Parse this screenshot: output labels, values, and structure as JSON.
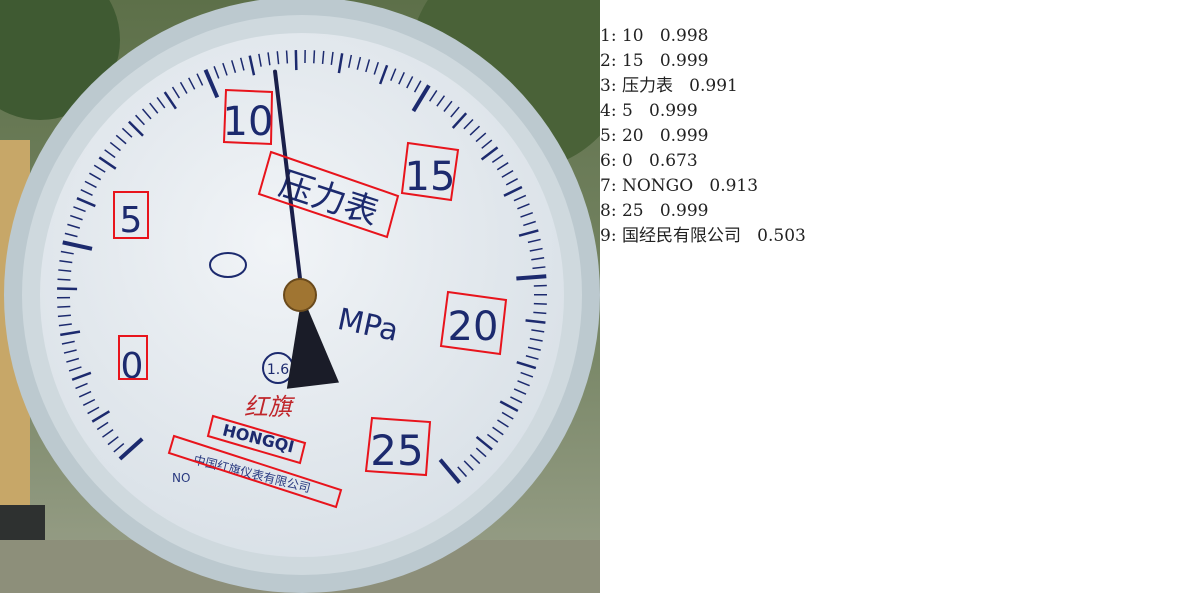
{
  "gauge": {
    "dial_numbers": [
      "0",
      "5",
      "10",
      "15",
      "20",
      "25"
    ],
    "title": "压力表",
    "unit": "MPa",
    "class_mark": "1.6",
    "brand_script": "红旗",
    "brand": "HONGQI",
    "company": "中国红旗仪表有限公司",
    "serial_label": "NO",
    "pointer_value": 11.5,
    "scale_max": 25
  },
  "colors": {
    "detection_box": "#e8141c",
    "dial_ink": "#1c2a6e",
    "dial_face": "#e9eef2"
  },
  "results": [
    {
      "index": "1:",
      "text": "10",
      "score": "0.998"
    },
    {
      "index": "2:",
      "text": "15",
      "score": "0.999"
    },
    {
      "index": "3:",
      "text": "压力表",
      "score": "0.991"
    },
    {
      "index": "4:",
      "text": "5",
      "score": "0.999"
    },
    {
      "index": "5:",
      "text": "20",
      "score": "0.999"
    },
    {
      "index": "6:",
      "text": "0",
      "score": "0.673"
    },
    {
      "index": "7:",
      "text": "NONGO",
      "score": "0.913"
    },
    {
      "index": "8:",
      "text": "25",
      "score": "0.999"
    },
    {
      "index": "9:",
      "text": "国经民有限公司",
      "score": "0.503"
    }
  ]
}
